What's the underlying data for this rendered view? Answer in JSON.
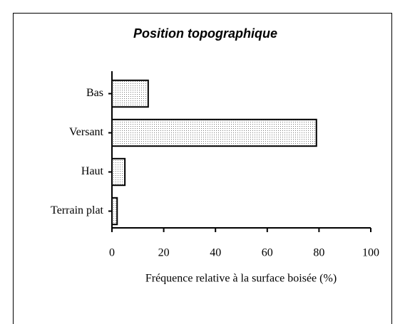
{
  "chart_data": {
    "type": "bar",
    "orientation": "horizontal",
    "title": "Position topographique",
    "categories": [
      "Bas",
      "Versant",
      "Haut",
      "Terrain plat"
    ],
    "values": [
      14,
      79,
      5,
      2
    ],
    "xlabel": "Fréquence relative à la surface boisée (%)",
    "xlim": [
      0,
      100
    ],
    "xticks": [
      0,
      20,
      40,
      60,
      80,
      100
    ]
  }
}
